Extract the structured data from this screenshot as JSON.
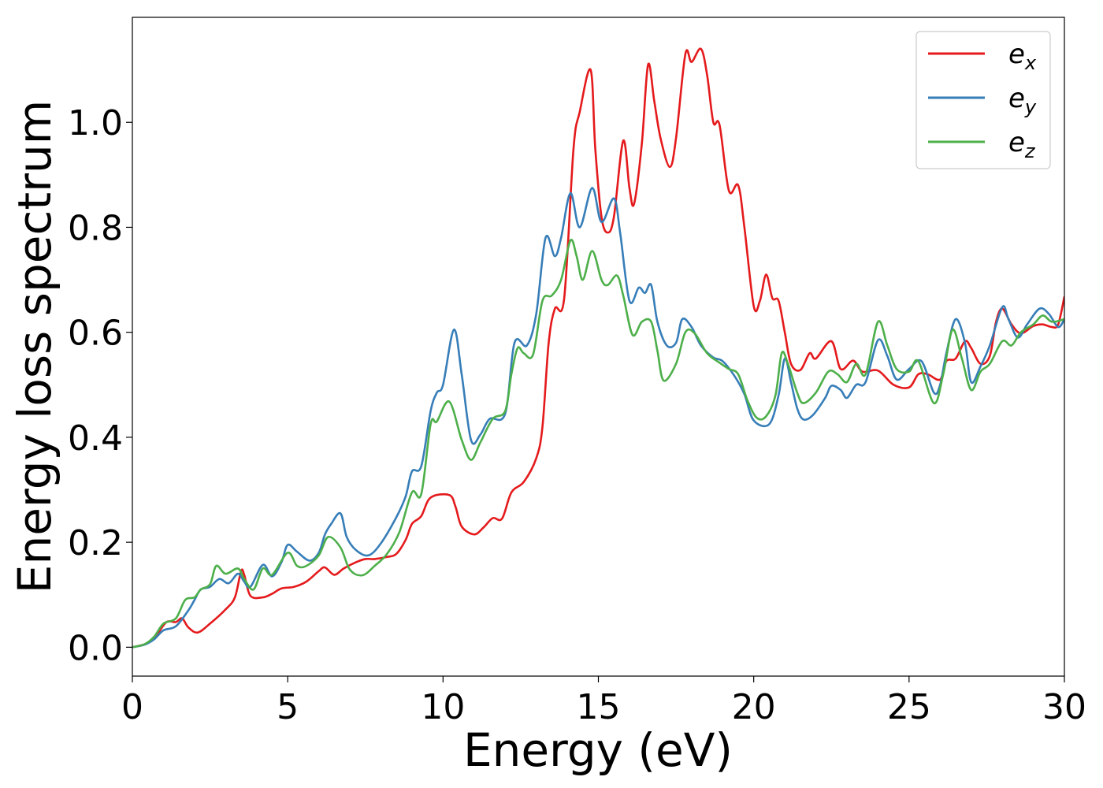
{
  "chart_data": {
    "type": "line",
    "title": "",
    "xlabel": "Energy (eV)",
    "ylabel": "Energy loss spectrum",
    "xlim": [
      0,
      30
    ],
    "ylim": [
      -0.055,
      1.2
    ],
    "xticks": [
      0,
      5,
      10,
      15,
      20,
      25,
      30
    ],
    "xtick_labels": [
      "0",
      "5",
      "10",
      "15",
      "20",
      "25",
      "30"
    ],
    "yticks": [
      0.0,
      0.2,
      0.4,
      0.6,
      0.8,
      1.0
    ],
    "ytick_labels": [
      "0.0",
      "0.2",
      "0.4",
      "0.6",
      "0.8",
      "1.0"
    ],
    "grid": false,
    "legend_position": "top-right",
    "series": [
      {
        "name": "e",
        "subscript": "x",
        "color": "#e41a1c",
        "points": [
          [
            0,
            0
          ],
          [
            0.5,
            0.008
          ],
          [
            0.8,
            0.025
          ],
          [
            1.1,
            0.048
          ],
          [
            1.4,
            0.048
          ],
          [
            1.6,
            0.055
          ],
          [
            1.8,
            0.038
          ],
          [
            2.1,
            0.028
          ],
          [
            2.5,
            0.045
          ],
          [
            3.0,
            0.072
          ],
          [
            3.3,
            0.095
          ],
          [
            3.5,
            0.145
          ],
          [
            3.6,
            0.138
          ],
          [
            3.8,
            0.098
          ],
          [
            4.2,
            0.095
          ],
          [
            4.5,
            0.102
          ],
          [
            4.8,
            0.112
          ],
          [
            5.2,
            0.115
          ],
          [
            5.6,
            0.125
          ],
          [
            6.0,
            0.145
          ],
          [
            6.2,
            0.152
          ],
          [
            6.5,
            0.138
          ],
          [
            6.8,
            0.15
          ],
          [
            7.2,
            0.162
          ],
          [
            7.5,
            0.168
          ],
          [
            7.8,
            0.168
          ],
          [
            8.2,
            0.172
          ],
          [
            8.5,
            0.178
          ],
          [
            8.8,
            0.205
          ],
          [
            9.0,
            0.235
          ],
          [
            9.3,
            0.25
          ],
          [
            9.6,
            0.285
          ],
          [
            10.2,
            0.29
          ],
          [
            10.4,
            0.268
          ],
          [
            10.6,
            0.23
          ],
          [
            11.0,
            0.215
          ],
          [
            11.3,
            0.228
          ],
          [
            11.6,
            0.246
          ],
          [
            11.9,
            0.245
          ],
          [
            12.2,
            0.295
          ],
          [
            12.6,
            0.315
          ],
          [
            13.0,
            0.36
          ],
          [
            13.2,
            0.42
          ],
          [
            13.4,
            0.58
          ],
          [
            13.6,
            0.645
          ],
          [
            13.9,
            0.665
          ],
          [
            14.2,
            0.95
          ],
          [
            14.4,
            1.02
          ],
          [
            14.75,
            1.1
          ],
          [
            14.9,
            0.95
          ],
          [
            15.1,
            0.82
          ],
          [
            15.3,
            0.79
          ],
          [
            15.5,
            0.82
          ],
          [
            15.8,
            0.965
          ],
          [
            16.0,
            0.875
          ],
          [
            16.15,
            0.845
          ],
          [
            16.4,
            0.96
          ],
          [
            16.6,
            1.11
          ],
          [
            16.8,
            1.04
          ],
          [
            17.0,
            0.97
          ],
          [
            17.3,
            0.915
          ],
          [
            17.5,
            0.97
          ],
          [
            17.8,
            1.13
          ],
          [
            18.0,
            1.115
          ],
          [
            18.3,
            1.14
          ],
          [
            18.5,
            1.09
          ],
          [
            18.7,
            1.0
          ],
          [
            18.9,
            0.995
          ],
          [
            19.2,
            0.87
          ],
          [
            19.5,
            0.88
          ],
          [
            19.7,
            0.8
          ],
          [
            20.0,
            0.65
          ],
          [
            20.2,
            0.66
          ],
          [
            20.4,
            0.71
          ],
          [
            20.6,
            0.665
          ],
          [
            20.8,
            0.66
          ],
          [
            21.0,
            0.6
          ],
          [
            21.2,
            0.54
          ],
          [
            21.5,
            0.528
          ],
          [
            21.8,
            0.56
          ],
          [
            22.0,
            0.55
          ],
          [
            22.5,
            0.583
          ],
          [
            22.8,
            0.53
          ],
          [
            23.2,
            0.546
          ],
          [
            23.5,
            0.525
          ],
          [
            24.0,
            0.527
          ],
          [
            24.5,
            0.5
          ],
          [
            25.0,
            0.495
          ],
          [
            25.3,
            0.52
          ],
          [
            25.6,
            0.52
          ],
          [
            26.0,
            0.51
          ],
          [
            26.2,
            0.545
          ],
          [
            26.5,
            0.55
          ],
          [
            26.8,
            0.583
          ],
          [
            27.0,
            0.57
          ],
          [
            27.3,
            0.54
          ],
          [
            27.6,
            0.555
          ],
          [
            27.8,
            0.62
          ],
          [
            28.0,
            0.645
          ],
          [
            28.3,
            0.615
          ],
          [
            28.6,
            0.598
          ],
          [
            29.0,
            0.612
          ],
          [
            29.3,
            0.615
          ],
          [
            29.6,
            0.61
          ],
          [
            29.8,
            0.615
          ],
          [
            30.0,
            0.668
          ]
        ]
      },
      {
        "name": "e",
        "subscript": "y",
        "color": "#377eb8",
        "points": [
          [
            0,
            0
          ],
          [
            0.4,
            0.005
          ],
          [
            0.7,
            0.015
          ],
          [
            1.0,
            0.032
          ],
          [
            1.4,
            0.04
          ],
          [
            1.8,
            0.07
          ],
          [
            2.0,
            0.09
          ],
          [
            2.2,
            0.11
          ],
          [
            2.5,
            0.115
          ],
          [
            2.8,
            0.13
          ],
          [
            3.1,
            0.122
          ],
          [
            3.4,
            0.14
          ],
          [
            3.6,
            0.125
          ],
          [
            3.8,
            0.115
          ],
          [
            4.2,
            0.157
          ],
          [
            4.5,
            0.135
          ],
          [
            4.8,
            0.162
          ],
          [
            5.0,
            0.195
          ],
          [
            5.3,
            0.182
          ],
          [
            5.7,
            0.165
          ],
          [
            6.0,
            0.18
          ],
          [
            6.2,
            0.215
          ],
          [
            6.4,
            0.235
          ],
          [
            6.7,
            0.255
          ],
          [
            6.9,
            0.21
          ],
          [
            7.2,
            0.185
          ],
          [
            7.6,
            0.175
          ],
          [
            8.0,
            0.198
          ],
          [
            8.5,
            0.248
          ],
          [
            8.8,
            0.288
          ],
          [
            9.0,
            0.335
          ],
          [
            9.3,
            0.345
          ],
          [
            9.6,
            0.45
          ],
          [
            9.8,
            0.485
          ],
          [
            10.0,
            0.5
          ],
          [
            10.35,
            0.605
          ],
          [
            10.6,
            0.52
          ],
          [
            10.9,
            0.395
          ],
          [
            11.2,
            0.405
          ],
          [
            11.5,
            0.435
          ],
          [
            12.0,
            0.445
          ],
          [
            12.3,
            0.58
          ],
          [
            12.7,
            0.575
          ],
          [
            13.0,
            0.635
          ],
          [
            13.3,
            0.78
          ],
          [
            13.6,
            0.745
          ],
          [
            13.8,
            0.78
          ],
          [
            14.1,
            0.865
          ],
          [
            14.4,
            0.8
          ],
          [
            14.8,
            0.875
          ],
          [
            15.1,
            0.81
          ],
          [
            15.5,
            0.855
          ],
          [
            15.7,
            0.79
          ],
          [
            16.0,
            0.66
          ],
          [
            16.3,
            0.685
          ],
          [
            16.5,
            0.675
          ],
          [
            16.7,
            0.69
          ],
          [
            16.9,
            0.62
          ],
          [
            17.2,
            0.575
          ],
          [
            17.5,
            0.58
          ],
          [
            17.7,
            0.625
          ],
          [
            18.0,
            0.61
          ],
          [
            18.3,
            0.575
          ],
          [
            18.7,
            0.552
          ],
          [
            19.0,
            0.545
          ],
          [
            19.4,
            0.515
          ],
          [
            19.7,
            0.482
          ],
          [
            20.0,
            0.432
          ],
          [
            20.5,
            0.425
          ],
          [
            20.8,
            0.48
          ],
          [
            21.0,
            0.55
          ],
          [
            21.2,
            0.505
          ],
          [
            21.4,
            0.455
          ],
          [
            21.6,
            0.434
          ],
          [
            21.9,
            0.442
          ],
          [
            22.3,
            0.475
          ],
          [
            22.5,
            0.498
          ],
          [
            22.8,
            0.49
          ],
          [
            23.0,
            0.475
          ],
          [
            23.3,
            0.5
          ],
          [
            23.6,
            0.505
          ],
          [
            24.0,
            0.585
          ],
          [
            24.3,
            0.555
          ],
          [
            24.6,
            0.51
          ],
          [
            25.0,
            0.53
          ],
          [
            25.4,
            0.545
          ],
          [
            25.8,
            0.485
          ],
          [
            26.0,
            0.5
          ],
          [
            26.2,
            0.56
          ],
          [
            26.5,
            0.625
          ],
          [
            26.8,
            0.58
          ],
          [
            27.0,
            0.505
          ],
          [
            27.3,
            0.535
          ],
          [
            27.6,
            0.575
          ],
          [
            28.0,
            0.648
          ],
          [
            28.2,
            0.625
          ],
          [
            28.5,
            0.59
          ],
          [
            28.8,
            0.615
          ],
          [
            29.2,
            0.645
          ],
          [
            29.5,
            0.635
          ],
          [
            29.8,
            0.61
          ],
          [
            30.0,
            0.625
          ]
        ]
      },
      {
        "name": "e",
        "subscript": "z",
        "color": "#4daf4a",
        "points": [
          [
            0,
            0
          ],
          [
            0.4,
            0.006
          ],
          [
            0.7,
            0.02
          ],
          [
            1.0,
            0.045
          ],
          [
            1.4,
            0.055
          ],
          [
            1.7,
            0.09
          ],
          [
            2.0,
            0.095
          ],
          [
            2.2,
            0.11
          ],
          [
            2.5,
            0.12
          ],
          [
            2.7,
            0.155
          ],
          [
            3.0,
            0.14
          ],
          [
            3.4,
            0.15
          ],
          [
            3.6,
            0.13
          ],
          [
            3.9,
            0.11
          ],
          [
            4.2,
            0.15
          ],
          [
            4.5,
            0.138
          ],
          [
            5.0,
            0.18
          ],
          [
            5.3,
            0.155
          ],
          [
            5.6,
            0.155
          ],
          [
            6.0,
            0.175
          ],
          [
            6.3,
            0.21
          ],
          [
            6.7,
            0.19
          ],
          [
            7.0,
            0.148
          ],
          [
            7.4,
            0.137
          ],
          [
            7.8,
            0.155
          ],
          [
            8.2,
            0.178
          ],
          [
            8.6,
            0.22
          ],
          [
            9.0,
            0.295
          ],
          [
            9.3,
            0.292
          ],
          [
            9.6,
            0.425
          ],
          [
            9.8,
            0.43
          ],
          [
            10.2,
            0.468
          ],
          [
            10.6,
            0.395
          ],
          [
            10.9,
            0.357
          ],
          [
            11.2,
            0.39
          ],
          [
            11.6,
            0.435
          ],
          [
            12.0,
            0.45
          ],
          [
            12.2,
            0.52
          ],
          [
            12.4,
            0.57
          ],
          [
            12.6,
            0.56
          ],
          [
            12.9,
            0.558
          ],
          [
            13.2,
            0.66
          ],
          [
            13.5,
            0.67
          ],
          [
            13.8,
            0.7
          ],
          [
            14.1,
            0.775
          ],
          [
            14.3,
            0.745
          ],
          [
            14.5,
            0.7
          ],
          [
            14.8,
            0.755
          ],
          [
            15.1,
            0.7
          ],
          [
            15.3,
            0.69
          ],
          [
            15.6,
            0.708
          ],
          [
            15.8,
            0.67
          ],
          [
            16.1,
            0.595
          ],
          [
            16.4,
            0.62
          ],
          [
            16.7,
            0.62
          ],
          [
            16.9,
            0.565
          ],
          [
            17.1,
            0.508
          ],
          [
            17.5,
            0.54
          ],
          [
            17.8,
            0.6
          ],
          [
            18.1,
            0.598
          ],
          [
            18.5,
            0.56
          ],
          [
            18.9,
            0.542
          ],
          [
            19.2,
            0.53
          ],
          [
            19.5,
            0.52
          ],
          [
            19.8,
            0.47
          ],
          [
            20.1,
            0.437
          ],
          [
            20.4,
            0.44
          ],
          [
            20.7,
            0.48
          ],
          [
            20.9,
            0.56
          ],
          [
            21.1,
            0.54
          ],
          [
            21.4,
            0.485
          ],
          [
            21.6,
            0.465
          ],
          [
            22.0,
            0.485
          ],
          [
            22.4,
            0.525
          ],
          [
            22.7,
            0.52
          ],
          [
            23.0,
            0.505
          ],
          [
            23.3,
            0.54
          ],
          [
            23.6,
            0.52
          ],
          [
            24.0,
            0.62
          ],
          [
            24.3,
            0.575
          ],
          [
            24.6,
            0.53
          ],
          [
            25.0,
            0.525
          ],
          [
            25.3,
            0.545
          ],
          [
            25.8,
            0.465
          ],
          [
            26.1,
            0.52
          ],
          [
            26.4,
            0.605
          ],
          [
            26.7,
            0.55
          ],
          [
            27.0,
            0.49
          ],
          [
            27.3,
            0.525
          ],
          [
            27.6,
            0.54
          ],
          [
            28.0,
            0.583
          ],
          [
            28.3,
            0.575
          ],
          [
            28.6,
            0.6
          ],
          [
            29.0,
            0.615
          ],
          [
            29.3,
            0.632
          ],
          [
            29.6,
            0.62
          ],
          [
            30.0,
            0.625
          ]
        ]
      }
    ]
  }
}
